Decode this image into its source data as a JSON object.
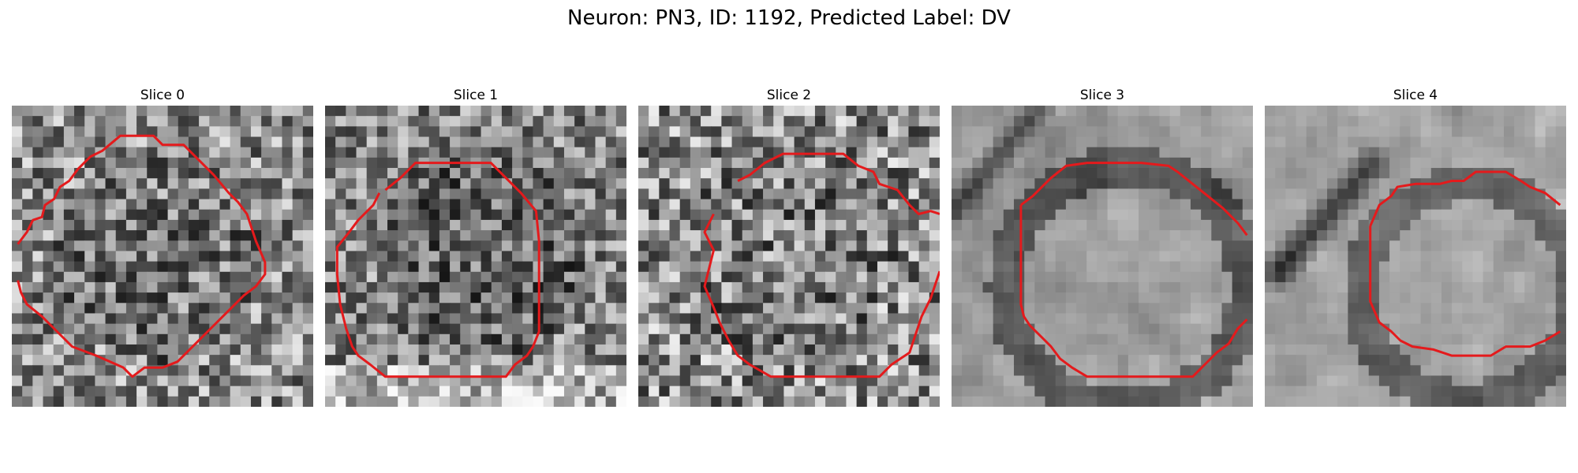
{
  "figure": {
    "title": "Neuron: PN3, ID: 1192, Predicted Label: DV"
  },
  "panels": [
    {
      "title": "Slice 0"
    },
    {
      "title": "Slice 1"
    },
    {
      "title": "Slice 2"
    },
    {
      "title": "Slice 3"
    },
    {
      "title": "Slice 4"
    }
  ],
  "colors": {
    "contour": "#e41a1c",
    "background": "#ffffff"
  },
  "image_style": "grayscale-noise"
}
